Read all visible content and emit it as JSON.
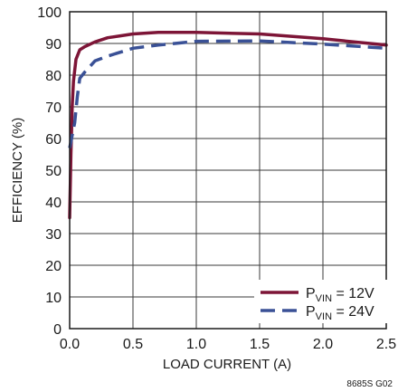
{
  "chart_data": {
    "type": "line",
    "xlabel": "LOAD CURRENT (A)",
    "ylabel": "EFFICIENCY (%)",
    "xlim": [
      0,
      2.5
    ],
    "ylim": [
      0,
      100
    ],
    "x_ticks": [
      "0.0",
      "0.5",
      "1.0",
      "1.5",
      "2.0",
      "2.5"
    ],
    "y_ticks": [
      "0",
      "10",
      "20",
      "30",
      "40",
      "50",
      "60",
      "70",
      "80",
      "90",
      "100"
    ],
    "grid": true,
    "legend_position": "bottom-right",
    "figure_code": "8685S G02",
    "series": [
      {
        "label_main": "P",
        "label_sub": "VIN",
        "label_rest": " = 12V",
        "color": "#7d1537",
        "dash": "solid",
        "points": [
          [
            0.0,
            35
          ],
          [
            0.01,
            55
          ],
          [
            0.02,
            70
          ],
          [
            0.03,
            78
          ],
          [
            0.05,
            85
          ],
          [
            0.08,
            88
          ],
          [
            0.12,
            89
          ],
          [
            0.2,
            90.5
          ],
          [
            0.3,
            91.8
          ],
          [
            0.4,
            92.4
          ],
          [
            0.5,
            93
          ],
          [
            0.7,
            93.5
          ],
          [
            1.0,
            93.5
          ],
          [
            1.5,
            93
          ],
          [
            2.0,
            91.5
          ],
          [
            2.5,
            89.5
          ]
        ]
      },
      {
        "label_main": "P",
        "label_sub": "VIN",
        "label_rest": " = 24V",
        "color": "#3a5196",
        "dash": "dashed",
        "points": [
          [
            0.0,
            57
          ],
          [
            0.02,
            61
          ],
          [
            0.04,
            65
          ],
          [
            0.06,
            73
          ],
          [
            0.08,
            79
          ],
          [
            0.12,
            81
          ],
          [
            0.2,
            84.5
          ],
          [
            0.3,
            86
          ],
          [
            0.5,
            88.5
          ],
          [
            0.7,
            89.5
          ],
          [
            1.0,
            90.7
          ],
          [
            1.5,
            90.8
          ],
          [
            2.0,
            89.8
          ],
          [
            2.5,
            88.5
          ]
        ]
      }
    ]
  }
}
